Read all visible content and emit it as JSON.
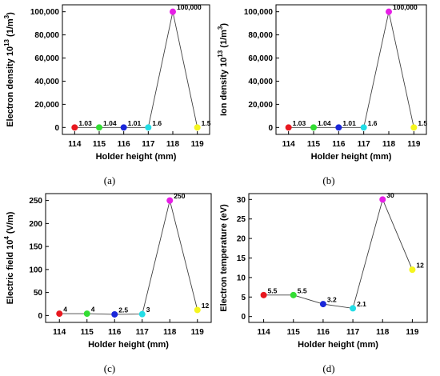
{
  "chart_data": [
    {
      "type": "line",
      "caption": "(a)",
      "ylabel_main": "Electron density 10",
      "ylabel_exp": "13",
      "ylabel_unit": " (1/m",
      "ylabel_unit_exp": "3",
      "ylabel_close": ")",
      "xlabel": "Holder height (mm)",
      "x": [
        114,
        115,
        116,
        117,
        118,
        119
      ],
      "values": [
        1.03,
        1.04,
        1.01,
        1.6,
        100000,
        1.5
      ],
      "labels": [
        "1.03",
        "1.04",
        "1.01",
        "1.6",
        "100,000",
        "1.5"
      ],
      "point_colors": [
        "#e8181f",
        "#33dd33",
        "#1a27d9",
        "#22dde6",
        "#e61ee6",
        "#f5f51f"
      ],
      "yticks": [
        "0",
        "20,000",
        "40,000",
        "60,000",
        "80,000",
        "100,000"
      ],
      "ylim": [
        -6000,
        106000
      ],
      "xlim": [
        113.5,
        119.5
      ]
    },
    {
      "type": "line",
      "caption": "(b)",
      "ylabel_main": "Ion density 10",
      "ylabel_exp": "13",
      "ylabel_unit": " (1/m",
      "ylabel_unit_exp": "3",
      "ylabel_close": ")",
      "xlabel": "Holder height (mm)",
      "x": [
        114,
        115,
        116,
        117,
        118,
        119
      ],
      "values": [
        1.03,
        1.04,
        1.01,
        1.6,
        100000,
        1.5
      ],
      "labels": [
        "1.03",
        "1.04",
        "1.01",
        "1.6",
        "100,000",
        "1.5"
      ],
      "point_colors": [
        "#e8181f",
        "#33dd33",
        "#1a27d9",
        "#22dde6",
        "#e61ee6",
        "#f5f51f"
      ],
      "yticks": [
        "0",
        "20,000",
        "40,000",
        "60,000",
        "80,000",
        "100,000"
      ],
      "ylim": [
        -6000,
        106000
      ],
      "xlim": [
        113.5,
        119.5
      ]
    },
    {
      "type": "line",
      "caption": "(c)",
      "ylabel_main": "Electric field 10",
      "ylabel_exp": "4",
      "ylabel_unit": " (V/m)",
      "ylabel_unit_exp": "",
      "ylabel_close": "",
      "xlabel": "Holder height (mm)",
      "x": [
        114,
        115,
        116,
        117,
        118,
        119
      ],
      "values": [
        4,
        4,
        2.5,
        3,
        250,
        12
      ],
      "labels": [
        "4",
        "4",
        "2.5",
        "3",
        "250",
        "12"
      ],
      "point_colors": [
        "#e8181f",
        "#33dd33",
        "#1a27d9",
        "#22dde6",
        "#e61ee6",
        "#f5f51f"
      ],
      "yticks": [
        "0",
        "50",
        "100",
        "150",
        "200",
        "250"
      ],
      "ylim": [
        -15,
        265
      ],
      "xlim": [
        113.5,
        119.5
      ]
    },
    {
      "type": "line",
      "caption": "(d)",
      "ylabel_main": "Electron temperature (eV)",
      "ylabel_exp": "",
      "ylabel_unit": "",
      "ylabel_unit_exp": "",
      "ylabel_close": "",
      "xlabel": "Holder height (mm)",
      "x": [
        114,
        115,
        116,
        117,
        118,
        119
      ],
      "values": [
        5.5,
        5.5,
        3.2,
        2.1,
        30,
        12
      ],
      "labels": [
        "5.5",
        "5.5",
        "3.2",
        "2.1",
        "30",
        "12"
      ],
      "point_colors": [
        "#e8181f",
        "#33dd33",
        "#1a27d9",
        "#22dde6",
        "#e61ee6",
        "#f5f51f"
      ],
      "yticks": [
        "0",
        "5",
        "10",
        "15",
        "20",
        "25",
        "30"
      ],
      "ylim": [
        -1.5,
        31.5
      ],
      "xlim": [
        113.5,
        119.5
      ]
    }
  ]
}
